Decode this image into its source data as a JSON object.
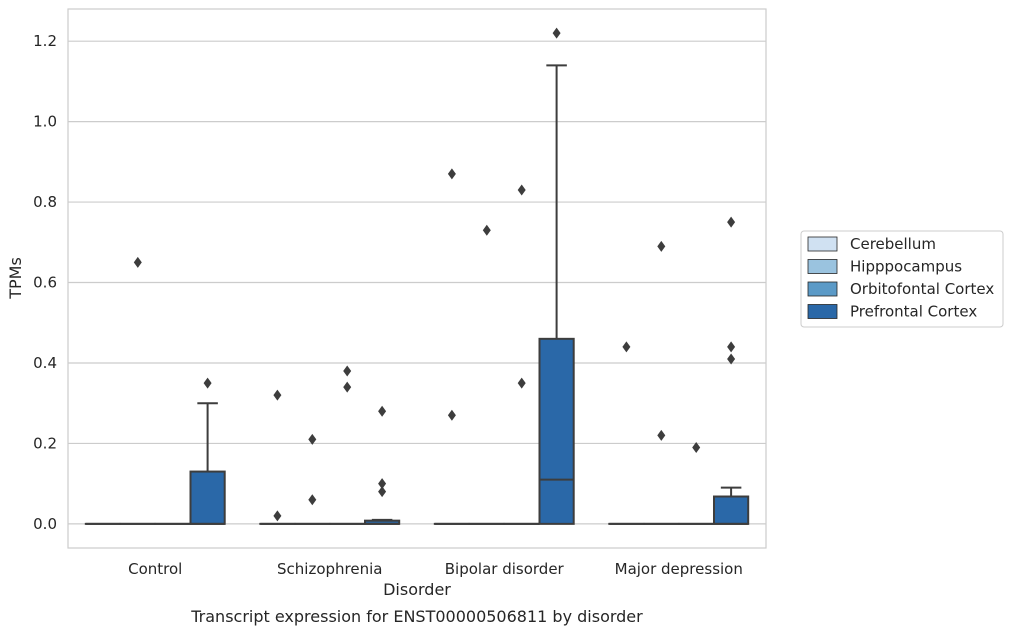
{
  "chart_data": {
    "type": "box",
    "title": "",
    "caption": "Transcript expression for ENST00000506811 by disorder",
    "xlabel": "Disorder",
    "ylabel": "TPMs",
    "ylim": [
      -0.06,
      1.28
    ],
    "yticks": [
      "0.0",
      "0.2",
      "0.4",
      "0.6",
      "0.8",
      "1.0",
      "1.2"
    ],
    "grid": "horizontal",
    "legend_position": "right",
    "categories": [
      "Control",
      "Schizophrenia",
      "Bipolar disorder",
      "Major depression"
    ],
    "series": [
      {
        "name": "Cerebellum",
        "color": "#d0e1f2",
        "boxes": [
          {
            "q1": 0,
            "median": 0,
            "q3": 0,
            "whisker_low": 0,
            "whisker_high": 0,
            "outliers": []
          },
          {
            "q1": 0,
            "median": 0,
            "q3": 0,
            "whisker_low": 0,
            "whisker_high": 0,
            "outliers": [
              0.02,
              0.32
            ]
          },
          {
            "q1": 0,
            "median": 0,
            "q3": 0,
            "whisker_low": 0,
            "whisker_high": 0,
            "outliers": [
              0.27,
              0.87
            ]
          },
          {
            "q1": 0,
            "median": 0,
            "q3": 0,
            "whisker_low": 0,
            "whisker_high": 0,
            "outliers": [
              0.44
            ]
          }
        ]
      },
      {
        "name": "Hipppocampus",
        "color": "#9ac3df",
        "boxes": [
          {
            "q1": 0,
            "median": 0,
            "q3": 0,
            "whisker_low": 0,
            "whisker_high": 0,
            "outliers": [
              0.65
            ]
          },
          {
            "q1": 0,
            "median": 0,
            "q3": 0,
            "whisker_low": 0,
            "whisker_high": 0,
            "outliers": [
              0.06,
              0.21
            ]
          },
          {
            "q1": 0,
            "median": 0,
            "q3": 0,
            "whisker_low": 0,
            "whisker_high": 0,
            "outliers": [
              0.73
            ]
          },
          {
            "q1": 0,
            "median": 0,
            "q3": 0,
            "whisker_low": 0,
            "whisker_high": 0,
            "outliers": [
              0.22,
              0.69
            ]
          }
        ]
      },
      {
        "name": "Orbitofontal Cortex",
        "color": "#5b9ac7",
        "boxes": [
          {
            "q1": 0,
            "median": 0,
            "q3": 0,
            "whisker_low": 0,
            "whisker_high": 0,
            "outliers": []
          },
          {
            "q1": 0,
            "median": 0,
            "q3": 0,
            "whisker_low": 0,
            "whisker_high": 0,
            "outliers": [
              0.34,
              0.38
            ]
          },
          {
            "q1": 0,
            "median": 0,
            "q3": 0,
            "whisker_low": 0,
            "whisker_high": 0,
            "outliers": [
              0.35,
              0.83
            ]
          },
          {
            "q1": 0,
            "median": 0,
            "q3": 0,
            "whisker_low": 0,
            "whisker_high": 0,
            "outliers": [
              0.19
            ]
          }
        ]
      },
      {
        "name": "Prefrontal Cortex",
        "color": "#2a68a8",
        "boxes": [
          {
            "q1": 0,
            "median": 0,
            "q3": 0.13,
            "whisker_low": 0,
            "whisker_high": 0.3,
            "outliers": [
              0.35
            ]
          },
          {
            "q1": 0,
            "median": 0,
            "q3": 0.008,
            "whisker_low": 0,
            "whisker_high": 0.01,
            "outliers": [
              0.08,
              0.1,
              0.28
            ]
          },
          {
            "q1": 0,
            "median": 0.11,
            "q3": 0.46,
            "whisker_low": 0,
            "whisker_high": 1.14,
            "outliers": [
              1.22
            ]
          },
          {
            "q1": 0,
            "median": 0,
            "q3": 0.068,
            "whisker_low": 0,
            "whisker_high": 0.09,
            "outliers": [
              0.41,
              0.44,
              0.75
            ]
          }
        ]
      }
    ]
  }
}
